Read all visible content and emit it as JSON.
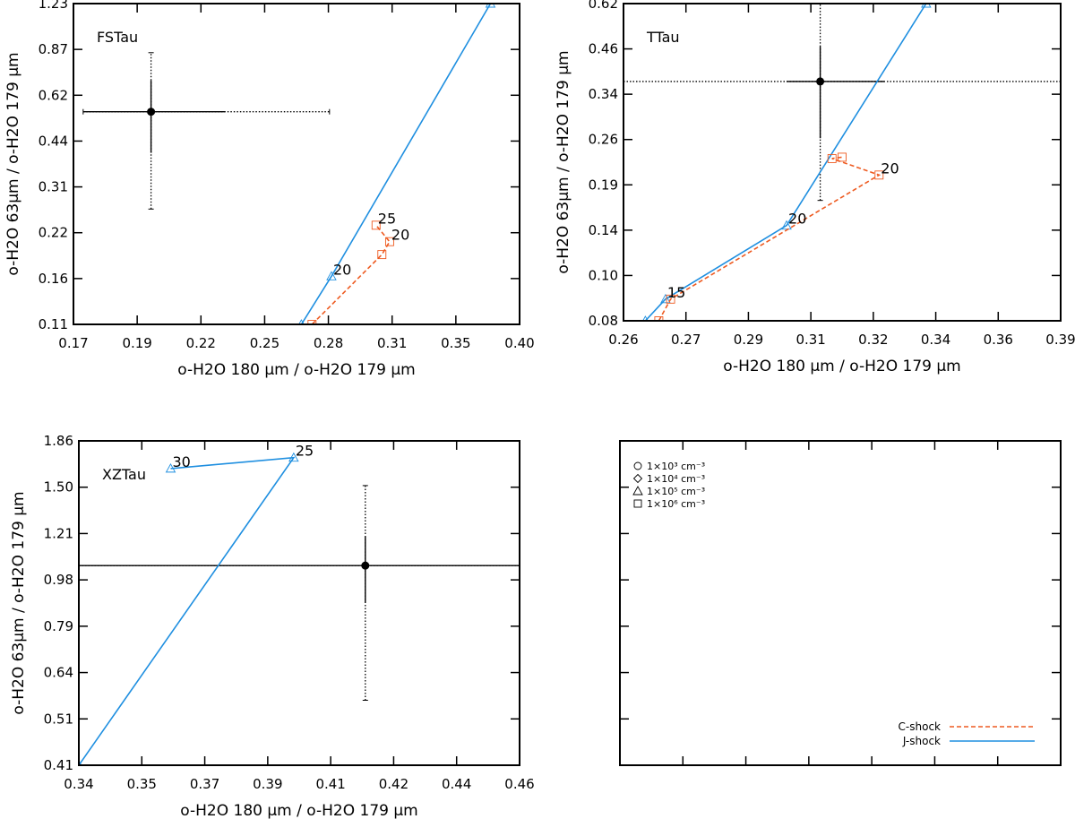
{
  "chart_data": [
    {
      "type": "line",
      "panel_label": "FSTau",
      "xlabel": "o-H2O 180 µm / o-H2O 179 µm",
      "ylabel": "o-H2O 63µm / o-H2O 179 µm",
      "xlim": [
        0.17,
        0.4
      ],
      "ylim": [
        0.11,
        1.23
      ],
      "ylog": true,
      "xticks": [
        0.17,
        0.19,
        0.22,
        0.25,
        0.28,
        0.31,
        0.35,
        0.4
      ],
      "xtick_labels": [
        "0.17",
        "0.19",
        "0.22",
        "0.25",
        "0.28",
        "0.31",
        "0.35",
        "0.40"
      ],
      "yticks": [
        0.11,
        0.16,
        0.22,
        0.31,
        0.44,
        0.62,
        0.87,
        1.23
      ],
      "ytick_labels": [
        "0.11",
        "0.16",
        "0.22",
        "0.31",
        "0.44",
        "0.62",
        "0.87",
        "1.23"
      ],
      "observation": {
        "x": 0.21,
        "y": 0.545,
        "xerr_solid": [
          0.175,
          0.248
        ],
        "xerr_dotted": [
          0.175,
          0.302
        ],
        "yerr_solid": [
          0.4,
          0.69
        ],
        "yerr_dotted": [
          0.262,
          0.85
        ]
      },
      "series": [
        {
          "kind": "J-shock",
          "color": "#1f8fe0",
          "dash": "solid",
          "x": [
            0.2875,
            0.303,
            0.385
          ],
          "y": [
            0.11,
            0.158,
            1.23
          ],
          "labels": [
            {
              "x": 0.303,
              "y": 0.158,
              "text": "20"
            }
          ]
        },
        {
          "kind": "C-shock",
          "color": "#ee5a20",
          "dash": "dashed",
          "x": [
            0.293,
            0.329,
            0.333,
            0.326
          ],
          "y": [
            0.11,
            0.186,
            0.205,
            0.232
          ],
          "labels": [
            {
              "x": 0.333,
              "y": 0.205,
              "text": "20"
            },
            {
              "x": 0.326,
              "y": 0.232,
              "text": "25"
            }
          ]
        }
      ]
    },
    {
      "type": "line",
      "panel_label": "TTau",
      "xlabel": "o-H2O 180 µm / o-H2O 179 µm",
      "ylabel": "o-H2O 63µm / o-H2O 179 µm",
      "xlim": [
        0.26,
        0.39
      ],
      "ylim": [
        0.08,
        0.62
      ],
      "ylog": true,
      "xticks": [
        0.26,
        0.27,
        0.29,
        0.31,
        0.32,
        0.34,
        0.36,
        0.39
      ],
      "xtick_labels": [
        "0.26",
        "0.27",
        "0.29",
        "0.31",
        "0.32",
        "0.34",
        "0.36",
        "0.39"
      ],
      "yticks": [
        0.08,
        0.1,
        0.14,
        0.19,
        0.26,
        0.34,
        0.46,
        0.62
      ],
      "ytick_labels": [
        "0.08",
        "0.10",
        "0.14",
        "0.19",
        "0.26",
        "0.34",
        "0.46",
        "0.62"
      ],
      "observation": {
        "x": 0.3185,
        "y": 0.375,
        "xerr_solid": [
          0.3085,
          0.3375
        ],
        "xerr_dotted": [
          0.26,
          0.39
        ],
        "yerr_solid": [
          0.26,
          0.47
        ],
        "yerr_dotted": [
          0.174,
          0.62
        ]
      },
      "series": [
        {
          "kind": "J-shock",
          "color": "#1f8fe0",
          "dash": "solid",
          "x": [
            0.2665,
            0.2725,
            0.3085,
            0.35
          ],
          "y": [
            0.08,
            0.092,
            0.148,
            0.62
          ],
          "labels": [
            {
              "x": 0.3085,
              "y": 0.148,
              "text": "20"
            },
            {
              "x": 0.2725,
              "y": 0.092,
              "text": "15"
            }
          ]
        },
        {
          "kind": "C-shock",
          "color": "#ee5a20",
          "dash": "dashed",
          "x": [
            0.2705,
            0.274,
            0.336,
            0.322,
            0.325
          ],
          "y": [
            0.08,
            0.092,
            0.205,
            0.228,
            0.23
          ],
          "labels": [
            {
              "x": 0.336,
              "y": 0.205,
              "text": "20"
            }
          ]
        }
      ]
    },
    {
      "type": "line",
      "panel_label": "XZTau",
      "xlabel": "o-H2O 180 µm / o-H2O 179 µm",
      "ylabel": "o-H2O 63µm / o-H2O 179 µm",
      "xlim": [
        0.34,
        0.46
      ],
      "ylim": [
        0.41,
        1.86
      ],
      "ylog": true,
      "xticks": [
        0.34,
        0.35,
        0.37,
        0.39,
        0.41,
        0.42,
        0.44,
        0.46
      ],
      "xtick_labels": [
        "0.34",
        "0.35",
        "0.37",
        "0.39",
        "0.41",
        "0.42",
        "0.44",
        "0.46"
      ],
      "yticks": [
        0.41,
        0.51,
        0.64,
        0.79,
        0.98,
        1.21,
        1.5,
        1.86
      ],
      "ytick_labels": [
        "0.41",
        "0.51",
        "0.64",
        "0.79",
        "0.98",
        "1.21",
        "1.50",
        "1.86"
      ],
      "observation": {
        "x": 0.418,
        "y": 1.04,
        "xerr_solid": [
          0.34,
          0.46
        ],
        "xerr_dotted": [
          0.34,
          0.46
        ],
        "yerr_solid": [
          0.875,
          1.19
        ],
        "yerr_dotted": [
          0.555,
          1.51
        ]
      },
      "series": [
        {
          "kind": "J-shock",
          "color": "#1f8fe0",
          "dash": "solid",
          "x": [
            0.34,
            0.3985,
            0.365
          ],
          "y": [
            0.41,
            1.72,
            1.635
          ],
          "labels": [
            {
              "x": 0.3985,
              "y": 1.72,
              "text": "25"
            },
            {
              "x": 0.365,
              "y": 1.635,
              "text": "30"
            }
          ]
        }
      ]
    }
  ],
  "legend": {
    "density_entries": [
      {
        "marker": "circle",
        "text": "1×10³ cm⁻³"
      },
      {
        "marker": "diamond",
        "text": "1×10⁴ cm⁻³"
      },
      {
        "marker": "triangle",
        "text": "1×10⁵ cm⁻³"
      },
      {
        "marker": "square",
        "text": "1×10⁶ cm⁻³"
      }
    ],
    "shock_entries": [
      {
        "text": "C-shock",
        "color": "#ee5a20",
        "dash": "dashed"
      },
      {
        "text": "J-shock",
        "color": "#1f8fe0",
        "dash": "solid"
      }
    ]
  }
}
